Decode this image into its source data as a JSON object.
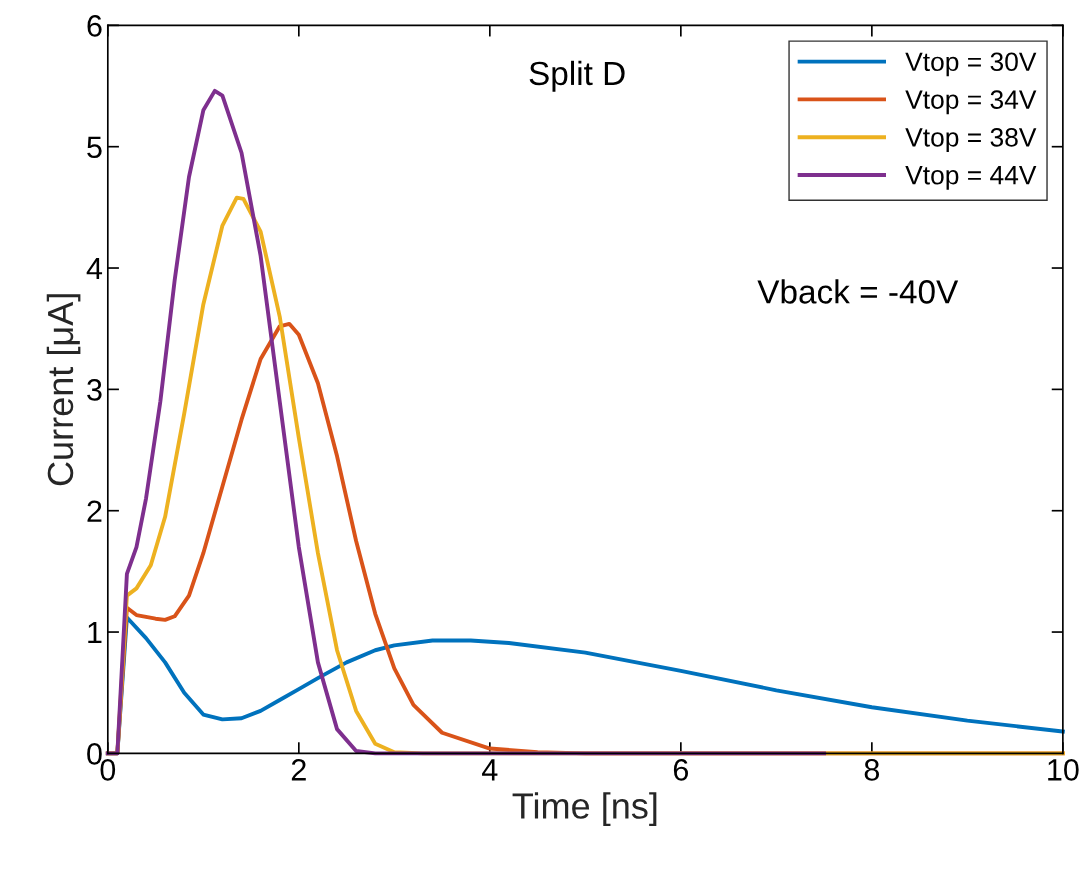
{
  "chart_data": {
    "type": "line",
    "xlabel": "Time [ns]",
    "ylabel": "Current [μA]",
    "xlim": [
      0,
      10
    ],
    "xticks": [
      0,
      2,
      4,
      6,
      8,
      10
    ],
    "ylim": [
      0,
      6
    ],
    "yticks": [
      0,
      1,
      2,
      3,
      4,
      5,
      6
    ],
    "grid": false,
    "legend": "top right",
    "marker": "none",
    "line_style": "solid",
    "annotations": [
      "Split D",
      "Vback = -40V"
    ],
    "series": [
      {
        "name": "Vtop = 30V",
        "color": "#0072bd",
        "x": [
          0,
          0.1,
          0.2,
          0.4,
          0.6,
          0.8,
          1.0,
          1.2,
          1.4,
          1.6,
          1.8,
          2.0,
          2.2,
          2.5,
          2.8,
          3.0,
          3.4,
          3.8,
          4.2,
          5,
          6,
          7,
          8,
          9,
          10
        ],
        "values": [
          0,
          0,
          1.12,
          0.95,
          0.75,
          0.5,
          0.32,
          0.28,
          0.29,
          0.35,
          0.44,
          0.53,
          0.62,
          0.75,
          0.85,
          0.89,
          0.93,
          0.93,
          0.91,
          0.83,
          0.68,
          0.52,
          0.38,
          0.27,
          0.18
        ]
      },
      {
        "name": "Vtop = 34V",
        "color": "#d95319",
        "x": [
          0,
          0.1,
          0.2,
          0.3,
          0.5,
          0.6,
          0.7,
          0.85,
          1.0,
          1.2,
          1.4,
          1.6,
          1.8,
          1.9,
          2.0,
          2.2,
          2.4,
          2.6,
          2.8,
          3.0,
          3.2,
          3.5,
          4,
          4.5,
          5,
          10
        ],
        "values": [
          0,
          0,
          1.2,
          1.14,
          1.11,
          1.1,
          1.13,
          1.3,
          1.65,
          2.2,
          2.75,
          3.25,
          3.52,
          3.54,
          3.45,
          3.05,
          2.45,
          1.75,
          1.15,
          0.7,
          0.4,
          0.17,
          0.04,
          0.01,
          0,
          0
        ]
      },
      {
        "name": "Vtop = 38V",
        "color": "#edb120",
        "x": [
          0,
          0.1,
          0.2,
          0.3,
          0.45,
          0.6,
          0.8,
          1.0,
          1.2,
          1.35,
          1.42,
          1.6,
          1.8,
          2.0,
          2.2,
          2.4,
          2.6,
          2.8,
          3.0,
          3.3,
          10
        ],
        "values": [
          0,
          0,
          1.3,
          1.36,
          1.55,
          1.95,
          2.8,
          3.7,
          4.35,
          4.58,
          4.57,
          4.3,
          3.6,
          2.6,
          1.65,
          0.85,
          0.35,
          0.08,
          0.01,
          0,
          0
        ]
      },
      {
        "name": "Vtop = 44V",
        "color": "#7e2f8e",
        "x": [
          0,
          0.1,
          0.2,
          0.3,
          0.4,
          0.55,
          0.7,
          0.85,
          1.0,
          1.12,
          1.2,
          1.4,
          1.6,
          1.8,
          2.0,
          2.2,
          2.4,
          2.6,
          2.8,
          7.5
        ],
        "values": [
          0,
          0,
          1.48,
          1.7,
          2.1,
          2.9,
          3.9,
          4.75,
          5.3,
          5.46,
          5.42,
          4.95,
          4.1,
          2.9,
          1.7,
          0.75,
          0.2,
          0.02,
          0,
          0
        ]
      }
    ]
  }
}
